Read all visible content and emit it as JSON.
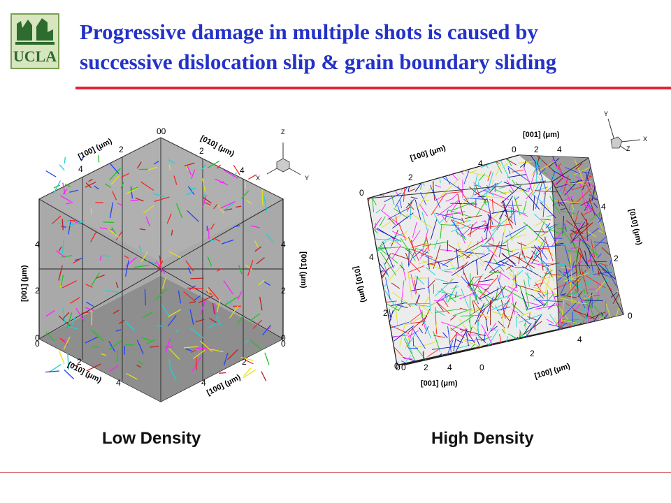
{
  "logo": {
    "text": "UCLA"
  },
  "slide": {
    "title_line1": "Progressive damage in multiple shots is caused by",
    "title_line2": "successive dislocation slip & grain boundary sliding"
  },
  "left_panel": {
    "caption": "Low Density",
    "axis_labels": {
      "top_left": "[100] (μm)",
      "top_right": "[010] (μm)",
      "left": "[001] (μm)",
      "right": "[001] (μm)",
      "bottom_left": "[010] (μm)",
      "bottom_right": "[100] (μm)"
    },
    "ticks": {
      "top_corner": "00",
      "top_left": [
        "2",
        "4"
      ],
      "top_right": [
        "2",
        "4"
      ],
      "left": [
        "4",
        "2",
        "0",
        "0"
      ],
      "right": [
        "4",
        "2",
        "0",
        "0"
      ],
      "bottom_left": [
        "2",
        "4"
      ],
      "bottom_right": [
        "2",
        "4"
      ]
    },
    "triad": {
      "z": "Z",
      "x": "X",
      "y": "Y"
    },
    "segment_colors": [
      "#ff2020",
      "#20c020",
      "#2040ff",
      "#ff20ff",
      "#20d0d0",
      "#e0e020",
      "#c02020"
    ]
  },
  "right_panel": {
    "caption": "High Density",
    "axis_labels": {
      "top_001": "[001] (μm)",
      "top_100": "[100] (μm)",
      "right_010": "[010] (μm)",
      "left_010": "[010] (μm)",
      "bottom_001": "[001] (μm)",
      "bottom_100": "[100] (μm)"
    },
    "ticks": {
      "top_001": [
        "0",
        "2",
        "4"
      ],
      "top_100_left": "0",
      "top_100": [
        "2",
        "4"
      ],
      "left": [
        "4",
        "2",
        "0"
      ],
      "right": [
        "4",
        "2",
        "0"
      ],
      "bottom_001": [
        "0",
        "0",
        "2",
        "4",
        "0"
      ],
      "bottom_100": [
        "2",
        "4"
      ]
    },
    "triad": {
      "y": "Y",
      "x": "X",
      "z": "Z"
    },
    "segment_colors": [
      "#ff2020",
      "#20c020",
      "#2040ff",
      "#ff20ff",
      "#20d0d0",
      "#e0e020",
      "#a01010",
      "#1010a0"
    ]
  }
}
